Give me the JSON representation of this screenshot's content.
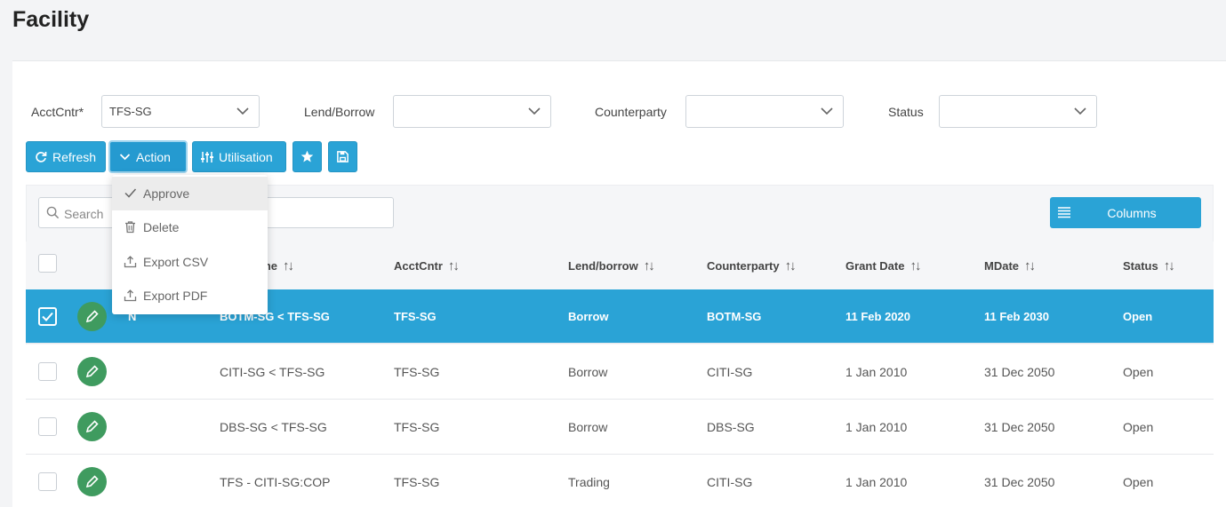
{
  "page": {
    "title": "Facility"
  },
  "filters": {
    "acctcntr": {
      "label": "AcctCntr*",
      "value": "TFS-SG"
    },
    "lend_borrow": {
      "label": "Lend/Borrow",
      "value": ""
    },
    "counterparty": {
      "label": "Counterparty",
      "value": ""
    },
    "status": {
      "label": "Status",
      "value": ""
    }
  },
  "toolbar": {
    "refresh": "Refresh",
    "action": "Action",
    "utilisation": "Utilisation",
    "favorite_icon": "star-icon",
    "save_icon": "save-icon"
  },
  "action_menu": {
    "items": [
      {
        "label": "Approve",
        "icon": "check-icon"
      },
      {
        "label": "Delete",
        "icon": "trash-icon"
      },
      {
        "label": "Export CSV",
        "icon": "upload-icon"
      },
      {
        "label": "Export PDF",
        "icon": "upload-icon"
      }
    ]
  },
  "search": {
    "placeholder": "Search"
  },
  "columns_button": "Columns",
  "table": {
    "columns": {
      "name_partial": "ame",
      "acctcntr": "AcctCntr",
      "lend_borrow": "Lend/borrow",
      "counterparty": "Counterparty",
      "grant_date": "Grant Date",
      "mdate": "MDate",
      "status": "Status"
    },
    "sort_glyph": "↑↓",
    "rows": [
      {
        "selected": true,
        "flag": "N",
        "name": "BOTM-SG < TFS-SG",
        "acctcntr": "TFS-SG",
        "lend_borrow": "Borrow",
        "counterparty": "BOTM-SG",
        "grant_date": "11 Feb 2020",
        "mdate": "11 Feb 2030",
        "status": "Open"
      },
      {
        "selected": false,
        "flag": "",
        "name": "CITI-SG < TFS-SG",
        "acctcntr": "TFS-SG",
        "lend_borrow": "Borrow",
        "counterparty": "CITI-SG",
        "grant_date": "1 Jan 2010",
        "mdate": "31 Dec 2050",
        "status": "Open"
      },
      {
        "selected": false,
        "flag": "",
        "name": "DBS-SG < TFS-SG",
        "acctcntr": "TFS-SG",
        "lend_borrow": "Borrow",
        "counterparty": "DBS-SG",
        "grant_date": "1 Jan 2010",
        "mdate": "31 Dec 2050",
        "status": "Open"
      },
      {
        "selected": false,
        "flag": "",
        "name": "TFS - CITI-SG:COP",
        "acctcntr": "TFS-SG",
        "lend_borrow": "Trading",
        "counterparty": "CITI-SG",
        "grant_date": "1 Jan 2010",
        "mdate": "31 Dec 2050",
        "status": "Open"
      }
    ]
  },
  "colors": {
    "accent": "#2aa3d6",
    "edit_button": "#3f9b5f"
  }
}
